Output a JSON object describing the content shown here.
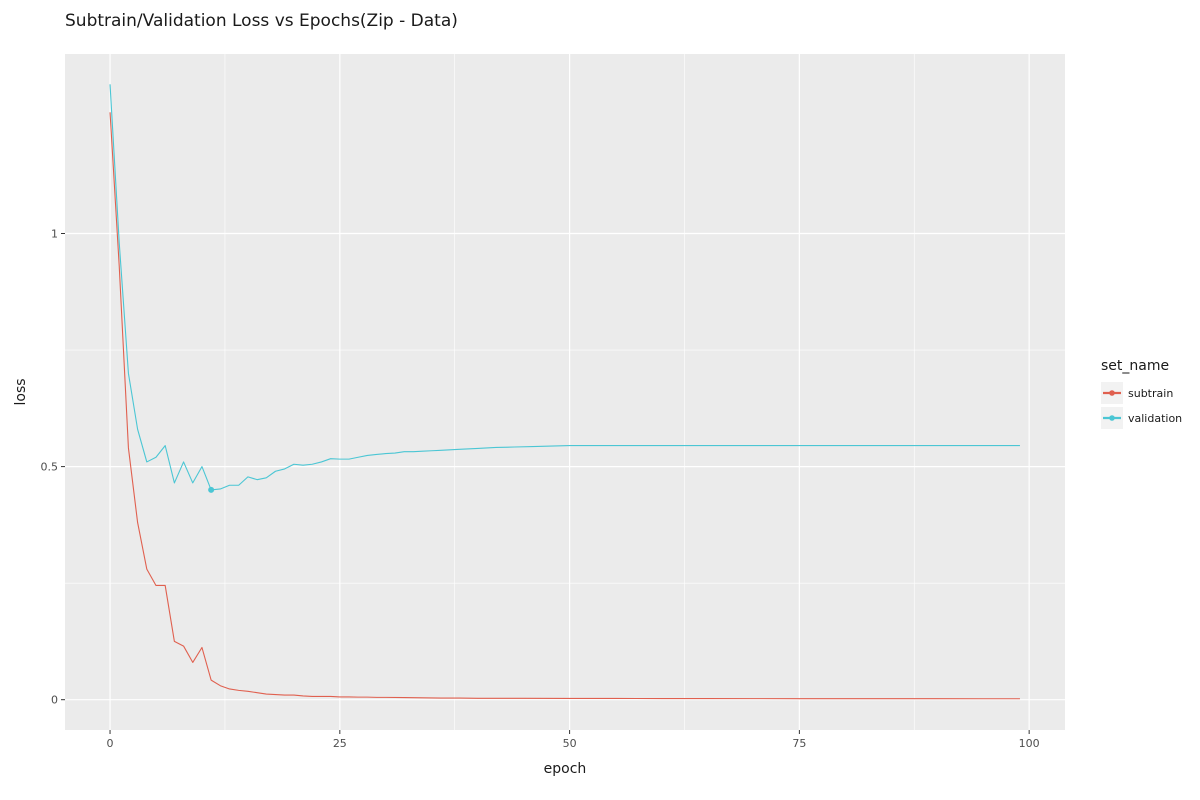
{
  "chart_data": {
    "type": "line",
    "title": "Subtrain/Validation Loss vs Epochs(Zip - Data)",
    "xlabel": "epoch",
    "ylabel": "loss",
    "xlim": [
      -4.9,
      103.9
    ],
    "ylim": [
      -0.065,
      1.385
    ],
    "x_ticks": [
      0,
      25,
      50,
      75,
      100
    ],
    "y_ticks": [
      0,
      0.5,
      1
    ],
    "x_tick_labels": [
      "0",
      "25",
      "50",
      "75",
      "100"
    ],
    "y_tick_labels": [
      "0",
      "0.5",
      "1"
    ],
    "x_minor_ticks": [
      12.5,
      37.5,
      62.5,
      87.5
    ],
    "y_minor_ticks": [
      0.25,
      0.75
    ],
    "grid": true,
    "legend": {
      "title": "set_name",
      "position": "right"
    },
    "colors": {
      "subtrain": "#E0604F",
      "validation": "#4BC6D4",
      "panel": "#EBEBEB",
      "grid": "#FFFFFF"
    },
    "series": [
      {
        "name": "subtrain",
        "color": "#E0604F",
        "x": [
          0,
          1,
          2,
          3,
          4,
          5,
          6,
          7,
          8,
          9,
          10,
          11,
          12,
          13,
          14,
          15,
          16,
          17,
          18,
          19,
          20,
          21,
          22,
          23,
          24,
          25,
          26,
          27,
          28,
          29,
          30,
          32,
          34,
          36,
          38,
          40,
          45,
          50,
          55,
          60,
          65,
          70,
          75,
          80,
          85,
          90,
          95,
          99
        ],
        "y": [
          1.26,
          0.93,
          0.54,
          0.38,
          0.28,
          0.245,
          0.245,
          0.125,
          0.115,
          0.08,
          0.112,
          0.042,
          0.03,
          0.023,
          0.02,
          0.018,
          0.015,
          0.012,
          0.011,
          0.01,
          0.01,
          0.008,
          0.007,
          0.007,
          0.007,
          0.006,
          0.006,
          0.0055,
          0.0055,
          0.005,
          0.005,
          0.0045,
          0.004,
          0.0035,
          0.0035,
          0.003,
          0.003,
          0.0028,
          0.0026,
          0.0025,
          0.0024,
          0.0023,
          0.0022,
          0.0022,
          0.0021,
          0.0021,
          0.002,
          0.002
        ]
      },
      {
        "name": "validation",
        "color": "#4BC6D4",
        "x": [
          0,
          1,
          2,
          3,
          4,
          5,
          6,
          7,
          8,
          9,
          10,
          11,
          12,
          13,
          14,
          15,
          16,
          17,
          18,
          19,
          20,
          21,
          22,
          23,
          24,
          25,
          26,
          27,
          28,
          29,
          30,
          31,
          32,
          33,
          34,
          35,
          36,
          38,
          40,
          42,
          44,
          46,
          48,
          50,
          55,
          60,
          65,
          70,
          75,
          80,
          85,
          90,
          95,
          99
        ],
        "y": [
          1.32,
          0.98,
          0.7,
          0.58,
          0.51,
          0.52,
          0.545,
          0.465,
          0.51,
          0.465,
          0.5,
          0.45,
          0.452,
          0.46,
          0.46,
          0.478,
          0.472,
          0.476,
          0.49,
          0.495,
          0.505,
          0.503,
          0.505,
          0.51,
          0.517,
          0.516,
          0.516,
          0.52,
          0.524,
          0.526,
          0.528,
          0.529,
          0.532,
          0.532,
          0.533,
          0.534,
          0.535,
          0.537,
          0.539,
          0.541,
          0.542,
          0.543,
          0.544,
          0.545,
          0.545,
          0.545,
          0.545,
          0.545,
          0.545,
          0.545,
          0.545,
          0.545,
          0.545,
          0.545
        ]
      }
    ],
    "highlight_point": {
      "series": "validation",
      "x": 11,
      "y": 0.45
    }
  }
}
